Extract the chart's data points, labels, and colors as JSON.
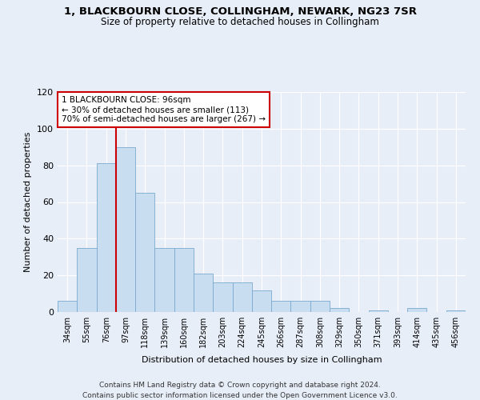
{
  "title": "1, BLACKBOURN CLOSE, COLLINGHAM, NEWARK, NG23 7SR",
  "subtitle": "Size of property relative to detached houses in Collingham",
  "xlabel": "Distribution of detached houses by size in Collingham",
  "ylabel": "Number of detached properties",
  "categories": [
    "34sqm",
    "55sqm",
    "76sqm",
    "97sqm",
    "118sqm",
    "139sqm",
    "160sqm",
    "182sqm",
    "203sqm",
    "224sqm",
    "245sqm",
    "266sqm",
    "287sqm",
    "308sqm",
    "329sqm",
    "350sqm",
    "371sqm",
    "393sqm",
    "414sqm",
    "435sqm",
    "456sqm"
  ],
  "values": [
    6,
    35,
    81,
    90,
    65,
    35,
    35,
    21,
    16,
    16,
    12,
    6,
    6,
    6,
    2,
    0,
    1,
    0,
    2,
    0,
    1
  ],
  "bar_color": "#c9ddf0",
  "bar_edge_color": "#7aaad0",
  "highlight_label": "1 BLACKBOURN CLOSE: 96sqm",
  "annotation_line1": "← 30% of detached houses are smaller (113)",
  "annotation_line2": "70% of semi-detached houses are larger (267) →",
  "annotation_box_color": "#ffffff",
  "annotation_box_edge": "#cc0000",
  "vline_color": "#cc0000",
  "ylim": [
    0,
    120
  ],
  "yticks": [
    0,
    20,
    40,
    60,
    80,
    100,
    120
  ],
  "bg_color": "#e8eef8",
  "fig_bg_color": "#e8eef8",
  "footer1": "Contains HM Land Registry data © Crown copyright and database right 2024.",
  "footer2": "Contains public sector information licensed under the Open Government Licence v3.0."
}
